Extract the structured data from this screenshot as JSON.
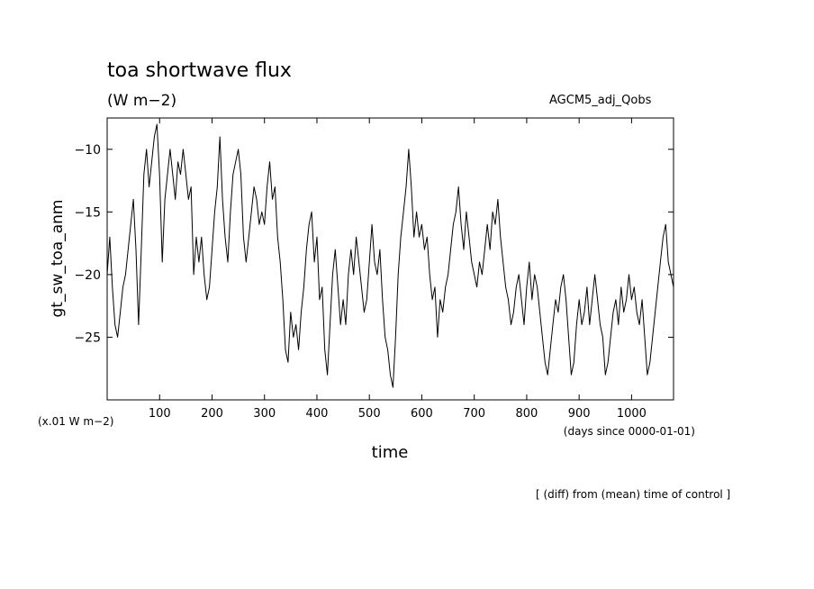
{
  "header": {
    "title": "toa shortwave flux",
    "units": "(W m−2)",
    "model": "AGCM5_adj_Qobs",
    "note": "[ (diff) from (mean) time of control ]"
  },
  "chart_data": {
    "type": "line",
    "title": "toa shortwave flux",
    "xlabel": "time",
    "ylabel": "gt_sw_toa_anm",
    "x_unit_note": "(days since 0000-01-01)",
    "y_unit_note": "(x.01 W m−2)",
    "xlim": [
      0,
      1080
    ],
    "ylim": [
      -30,
      -7.5
    ],
    "x_ticks": [
      100,
      200,
      300,
      400,
      500,
      600,
      700,
      800,
      900,
      1000
    ],
    "y_ticks": [
      -10,
      -15,
      -20,
      -25
    ],
    "grid": false,
    "series": [
      {
        "points": [
          [
            0,
            -20
          ],
          [
            5,
            -17
          ],
          [
            10,
            -21
          ],
          [
            15,
            -24
          ],
          [
            20,
            -25
          ],
          [
            25,
            -23
          ],
          [
            30,
            -21
          ],
          [
            35,
            -20
          ],
          [
            40,
            -18
          ],
          [
            45,
            -16
          ],
          [
            50,
            -14
          ],
          [
            55,
            -18
          ],
          [
            60,
            -24
          ],
          [
            65,
            -18
          ],
          [
            70,
            -12
          ],
          [
            75,
            -10
          ],
          [
            80,
            -13
          ],
          [
            85,
            -11
          ],
          [
            90,
            -9
          ],
          [
            95,
            -8
          ],
          [
            100,
            -12
          ],
          [
            105,
            -19
          ],
          [
            110,
            -14
          ],
          [
            115,
            -12
          ],
          [
            120,
            -10
          ],
          [
            125,
            -12
          ],
          [
            130,
            -14
          ],
          [
            135,
            -11
          ],
          [
            140,
            -12
          ],
          [
            145,
            -10
          ],
          [
            150,
            -12
          ],
          [
            155,
            -14
          ],
          [
            160,
            -13
          ],
          [
            165,
            -20
          ],
          [
            170,
            -17
          ],
          [
            175,
            -19
          ],
          [
            180,
            -17
          ],
          [
            185,
            -20
          ],
          [
            190,
            -22
          ],
          [
            195,
            -21
          ],
          [
            200,
            -18
          ],
          [
            205,
            -15
          ],
          [
            210,
            -13
          ],
          [
            215,
            -9
          ],
          [
            220,
            -14
          ],
          [
            225,
            -17
          ],
          [
            230,
            -19
          ],
          [
            235,
            -15
          ],
          [
            240,
            -12
          ],
          [
            245,
            -11
          ],
          [
            250,
            -10
          ],
          [
            255,
            -12
          ],
          [
            260,
            -17
          ],
          [
            265,
            -19
          ],
          [
            270,
            -17
          ],
          [
            275,
            -15
          ],
          [
            280,
            -13
          ],
          [
            285,
            -14
          ],
          [
            290,
            -16
          ],
          [
            295,
            -15
          ],
          [
            300,
            -16
          ],
          [
            305,
            -13
          ],
          [
            310,
            -11
          ],
          [
            315,
            -14
          ],
          [
            320,
            -13
          ],
          [
            325,
            -17
          ],
          [
            330,
            -19
          ],
          [
            335,
            -22
          ],
          [
            340,
            -26
          ],
          [
            345,
            -27
          ],
          [
            350,
            -23
          ],
          [
            355,
            -25
          ],
          [
            360,
            -24
          ],
          [
            365,
            -26
          ],
          [
            370,
            -23
          ],
          [
            375,
            -21
          ],
          [
            380,
            -18
          ],
          [
            385,
            -16
          ],
          [
            390,
            -15
          ],
          [
            395,
            -19
          ],
          [
            400,
            -17
          ],
          [
            405,
            -22
          ],
          [
            410,
            -21
          ],
          [
            415,
            -26
          ],
          [
            420,
            -28
          ],
          [
            425,
            -24
          ],
          [
            430,
            -20
          ],
          [
            435,
            -18
          ],
          [
            440,
            -21
          ],
          [
            445,
            -24
          ],
          [
            450,
            -22
          ],
          [
            455,
            -24
          ],
          [
            460,
            -20
          ],
          [
            465,
            -18
          ],
          [
            470,
            -20
          ],
          [
            475,
            -17
          ],
          [
            480,
            -19
          ],
          [
            485,
            -21
          ],
          [
            490,
            -23
          ],
          [
            495,
            -22
          ],
          [
            500,
            -19
          ],
          [
            505,
            -16
          ],
          [
            510,
            -19
          ],
          [
            515,
            -20
          ],
          [
            520,
            -18
          ],
          [
            525,
            -22
          ],
          [
            530,
            -25
          ],
          [
            535,
            -26
          ],
          [
            540,
            -28
          ],
          [
            545,
            -29
          ],
          [
            550,
            -25
          ],
          [
            555,
            -20
          ],
          [
            560,
            -17
          ],
          [
            565,
            -15
          ],
          [
            570,
            -13
          ],
          [
            575,
            -10
          ],
          [
            580,
            -13
          ],
          [
            585,
            -17
          ],
          [
            590,
            -15
          ],
          [
            595,
            -17
          ],
          [
            600,
            -16
          ],
          [
            605,
            -18
          ],
          [
            610,
            -17
          ],
          [
            615,
            -20
          ],
          [
            620,
            -22
          ],
          [
            625,
            -21
          ],
          [
            630,
            -25
          ],
          [
            635,
            -22
          ],
          [
            640,
            -23
          ],
          [
            645,
            -21
          ],
          [
            650,
            -20
          ],
          [
            655,
            -18
          ],
          [
            660,
            -16
          ],
          [
            665,
            -15
          ],
          [
            670,
            -13
          ],
          [
            675,
            -16
          ],
          [
            680,
            -18
          ],
          [
            685,
            -15
          ],
          [
            690,
            -17
          ],
          [
            695,
            -19
          ],
          [
            700,
            -20
          ],
          [
            705,
            -21
          ],
          [
            710,
            -19
          ],
          [
            715,
            -20
          ],
          [
            720,
            -18
          ],
          [
            725,
            -16
          ],
          [
            730,
            -18
          ],
          [
            735,
            -15
          ],
          [
            740,
            -16
          ],
          [
            745,
            -14
          ],
          [
            750,
            -17
          ],
          [
            755,
            -19
          ],
          [
            760,
            -21
          ],
          [
            765,
            -22
          ],
          [
            770,
            -24
          ],
          [
            775,
            -23
          ],
          [
            780,
            -21
          ],
          [
            785,
            -20
          ],
          [
            790,
            -22
          ],
          [
            795,
            -24
          ],
          [
            800,
            -21
          ],
          [
            805,
            -19
          ],
          [
            810,
            -22
          ],
          [
            815,
            -20
          ],
          [
            820,
            -21
          ],
          [
            825,
            -23
          ],
          [
            830,
            -25
          ],
          [
            835,
            -27
          ],
          [
            840,
            -28
          ],
          [
            845,
            -26
          ],
          [
            850,
            -24
          ],
          [
            855,
            -22
          ],
          [
            860,
            -23
          ],
          [
            865,
            -21
          ],
          [
            870,
            -20
          ],
          [
            875,
            -22
          ],
          [
            880,
            -25
          ],
          [
            885,
            -28
          ],
          [
            890,
            -27
          ],
          [
            895,
            -24
          ],
          [
            900,
            -22
          ],
          [
            905,
            -24
          ],
          [
            910,
            -23
          ],
          [
            915,
            -21
          ],
          [
            920,
            -24
          ],
          [
            925,
            -22
          ],
          [
            930,
            -20
          ],
          [
            935,
            -22
          ],
          [
            940,
            -24
          ],
          [
            945,
            -25
          ],
          [
            950,
            -28
          ],
          [
            955,
            -27
          ],
          [
            960,
            -25
          ],
          [
            965,
            -23
          ],
          [
            970,
            -22
          ],
          [
            975,
            -24
          ],
          [
            980,
            -21
          ],
          [
            985,
            -23
          ],
          [
            990,
            -22
          ],
          [
            995,
            -20
          ],
          [
            1000,
            -22
          ],
          [
            1005,
            -21
          ],
          [
            1010,
            -23
          ],
          [
            1015,
            -24
          ],
          [
            1020,
            -22
          ],
          [
            1025,
            -25
          ],
          [
            1030,
            -28
          ],
          [
            1035,
            -27
          ],
          [
            1040,
            -25
          ],
          [
            1045,
            -23
          ],
          [
            1050,
            -21
          ],
          [
            1055,
            -19
          ],
          [
            1060,
            -17
          ],
          [
            1065,
            -16
          ],
          [
            1070,
            -19
          ],
          [
            1075,
            -20
          ],
          [
            1080,
            -21
          ]
        ]
      }
    ]
  }
}
